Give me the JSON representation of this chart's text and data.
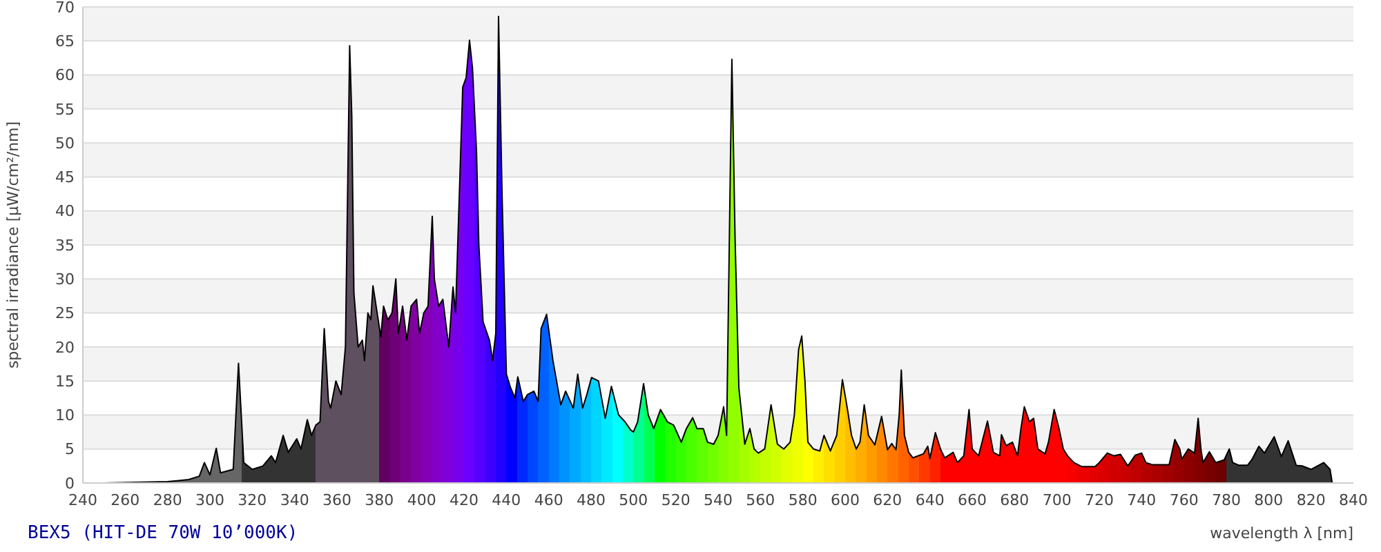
{
  "chart_data": {
    "type": "area",
    "title": "BEX5 (HIT-DE 70W 10’000K)",
    "xlabel": "wavelength λ [nm]",
    "ylabel": "spectral irradiance [µW/cm²/nm]",
    "color": "#000000",
    "grid": "y",
    "xlim": [
      240,
      840
    ],
    "xticks": [
      240,
      260,
      280,
      300,
      320,
      340,
      360,
      380,
      400,
      420,
      440,
      460,
      480,
      500,
      520,
      540,
      560,
      580,
      600,
      620,
      640,
      660,
      680,
      700,
      720,
      740,
      760,
      780,
      800,
      820,
      840
    ],
    "ylim": [
      0,
      70
    ],
    "yticks": [
      0,
      5,
      10,
      15,
      20,
      25,
      30,
      35,
      40,
      45,
      50,
      55,
      60,
      65,
      70
    ],
    "x": [
      250,
      280,
      290,
      295,
      297.4,
      300,
      303,
      305,
      311,
      313.5,
      316,
      320,
      325,
      329,
      331,
      334.6,
      337,
      341,
      343,
      346,
      348,
      350,
      352,
      354,
      356,
      357,
      359.5,
      362,
      364,
      366,
      367,
      368,
      370,
      372,
      373,
      374.6,
      376,
      377,
      378,
      380.7,
      382,
      384,
      386,
      387.8,
      389,
      391,
      393,
      395,
      397.6,
      399,
      401,
      403,
      405,
      406,
      408,
      410,
      412.8,
      414.8,
      416,
      419.4,
      421,
      422.6,
      424,
      425.9,
      427,
      429,
      432,
      433.5,
      435,
      436.3,
      438,
      440,
      442,
      444,
      445.4,
      448,
      450,
      453,
      455,
      456.4,
      459,
      462,
      465.7,
      468,
      471.6,
      473.7,
      476,
      478,
      480.2,
      483.5,
      486.7,
      489.6,
      493,
      496,
      498.7,
      500,
      502,
      504.8,
      507,
      509.6,
      512.8,
      516,
      519,
      522.6,
      525,
      528,
      530,
      533,
      535,
      537.9,
      540,
      542.6,
      544,
      546.5,
      548,
      549.8,
      552.6,
      555,
      557,
      559,
      562,
      565,
      568,
      571,
      574,
      576,
      578,
      579.5,
      581,
      582.4,
      585,
      588,
      590,
      593,
      596,
      598.7,
      601,
      603,
      605.2,
      607,
      609,
      611,
      614,
      617.2,
      620,
      622,
      624,
      625.5,
      626.5,
      628,
      630,
      632,
      637,
      639,
      640,
      642.6,
      645,
      647,
      651,
      653,
      656,
      658.5,
      660,
      663,
      667.2,
      670,
      673,
      673.8,
      676,
      679,
      681.4,
      683,
      684.6,
      687,
      689,
      691,
      694.4,
      696,
      698.7,
      701,
      703,
      705,
      708,
      711.8,
      718,
      720,
      723.8,
      727,
      730,
      733.5,
      737,
      740,
      742,
      745,
      753,
      755.7,
      758,
      759,
      762,
      765,
      766.7,
      768,
      769,
      772,
      775,
      779,
      781.4,
      783,
      786,
      790,
      792,
      795.4,
      798,
      802.6,
      806,
      809.2,
      813,
      816,
      820,
      826,
      829,
      830
    ],
    "values": [
      0,
      0.2,
      0.5,
      1,
      3,
      1.2,
      5.1,
      1.5,
      2,
      17.6,
      3,
      2,
      2.5,
      4,
      3,
      7,
      4.5,
      6.5,
      5,
      9.3,
      7,
      8.5,
      9,
      22.7,
      12,
      11,
      15,
      13,
      20,
      64.3,
      54,
      28,
      20,
      21,
      18,
      25,
      24,
      29,
      27,
      21.5,
      26,
      24,
      25,
      30,
      22,
      26,
      21,
      26,
      27,
      22,
      25,
      26,
      39.2,
      30,
      26,
      27,
      20,
      28.8,
      25,
      58.2,
      59.6,
      65.1,
      61,
      48.7,
      35,
      23.7,
      21,
      18,
      22,
      68.6,
      42,
      16,
      14,
      12.5,
      15.6,
      12,
      13,
      13.5,
      12,
      22.7,
      24.8,
      18,
      11.5,
      13.5,
      11,
      16,
      11,
      13,
      15.5,
      15,
      9.5,
      14.2,
      10,
      9,
      7.8,
      7.5,
      9,
      14.6,
      10,
      8,
      10.8,
      9,
      8.5,
      6,
      8,
      9.6,
      8,
      8,
      6,
      5.7,
      7,
      11.2,
      7,
      62.3,
      36,
      14,
      5.7,
      8,
      5,
      4.4,
      5,
      11.5,
      5.7,
      5,
      6,
      10,
      19.6,
      21.6,
      15,
      6,
      5,
      4.7,
      7,
      4.7,
      7,
      15.2,
      11,
      7,
      5,
      6,
      11.5,
      7,
      5.6,
      9.8,
      4.9,
      5.8,
      4.9,
      10,
      16.6,
      7,
      4.5,
      3.7,
      4.3,
      5.4,
      3.6,
      7.4,
      5,
      3.7,
      4.5,
      3,
      4,
      10.8,
      5,
      4,
      9.1,
      4.5,
      4,
      7.1,
      5.5,
      6,
      4,
      8,
      11.2,
      9,
      9.5,
      5,
      4.3,
      6,
      10.8,
      8,
      5,
      4,
      3,
      2.4,
      2.4,
      3,
      4.4,
      4,
      4.2,
      2.5,
      4.1,
      4.4,
      3,
      2.7,
      2.7,
      6.4,
      5,
      3.5,
      5,
      4.4,
      9.5,
      5,
      3,
      4.6,
      3,
      3.4,
      5,
      3,
      2.6,
      2.6,
      3.4,
      5.4,
      4.4,
      6.8,
      3.9,
      6.2,
      2.6,
      2.5,
      2,
      3,
      2,
      0
    ]
  }
}
